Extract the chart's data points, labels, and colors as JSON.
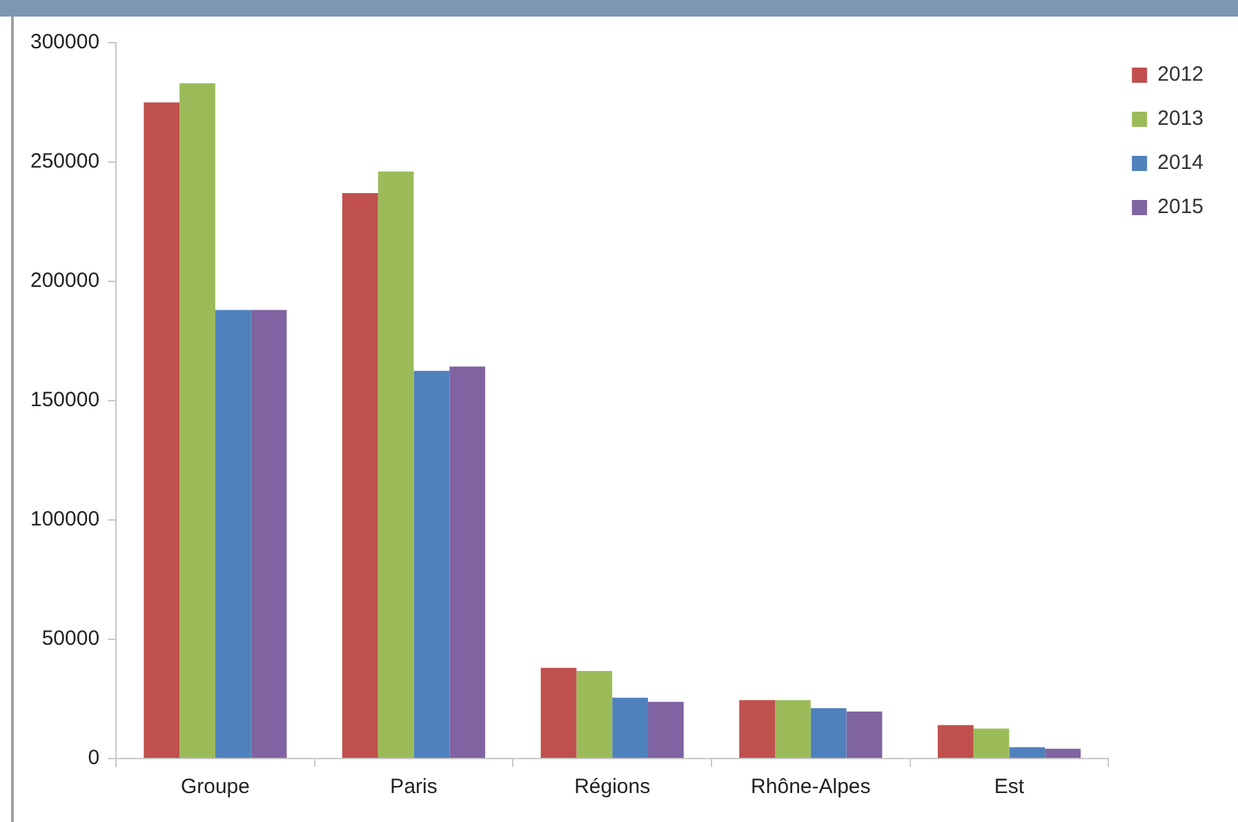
{
  "chart_data": {
    "type": "bar",
    "categories": [
      "Groupe",
      "Paris",
      "Régions",
      "Rhône-Alpes",
      "Est"
    ],
    "series": [
      {
        "name": "2012",
        "color": "#c0504d",
        "values": [
          275000,
          237000,
          38000,
          24500,
          14000
        ]
      },
      {
        "name": "2013",
        "color": "#9bbb59",
        "values": [
          283000,
          246000,
          36700,
          24500,
          12600
        ]
      },
      {
        "name": "2014",
        "color": "#4f81bd",
        "values": [
          188000,
          162500,
          25500,
          21100,
          4800
        ]
      },
      {
        "name": "2015",
        "color": "#8064a2",
        "values": [
          188000,
          164300,
          23800,
          19700,
          4100
        ]
      }
    ],
    "ylim": [
      0,
      300000
    ],
    "yticks": [
      0,
      50000,
      100000,
      150000,
      200000,
      250000,
      300000
    ],
    "grid": false,
    "legend": "top right"
  }
}
